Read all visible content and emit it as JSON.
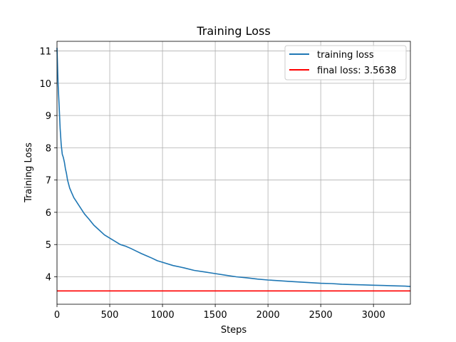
{
  "chart_data": {
    "type": "line",
    "title": "Training Loss",
    "xlabel": "Steps",
    "ylabel": "Training Loss",
    "xlim": [
      0,
      3350
    ],
    "ylim": [
      3.15,
      11.3
    ],
    "xticks": [
      0,
      500,
      1000,
      1500,
      2000,
      2500,
      3000
    ],
    "yticks": [
      4,
      5,
      6,
      7,
      8,
      9,
      10,
      11
    ],
    "grid": true,
    "legend": "top-right",
    "series": [
      {
        "name": "training loss",
        "color": "#1f77b4",
        "x": [
          0,
          10,
          20,
          30,
          40,
          50,
          60,
          70,
          80,
          90,
          100,
          120,
          140,
          160,
          180,
          200,
          230,
          260,
          300,
          350,
          400,
          450,
          500,
          550,
          600,
          650,
          700,
          750,
          800,
          850,
          900,
          950,
          1000,
          1100,
          1200,
          1300,
          1400,
          1500,
          1600,
          1700,
          1800,
          1900,
          2000,
          2100,
          2200,
          2300,
          2400,
          2500,
          2600,
          2700,
          2800,
          2900,
          3000,
          3100,
          3200,
          3300,
          3350
        ],
        "values": [
          11.1,
          10.0,
          9.3,
          8.6,
          8.1,
          7.8,
          7.7,
          7.55,
          7.35,
          7.2,
          7.0,
          6.75,
          6.6,
          6.45,
          6.35,
          6.25,
          6.1,
          5.95,
          5.8,
          5.6,
          5.45,
          5.3,
          5.2,
          5.1,
          5.0,
          4.95,
          4.88,
          4.8,
          4.72,
          4.65,
          4.58,
          4.5,
          4.45,
          4.35,
          4.28,
          4.2,
          4.15,
          4.1,
          4.05,
          4.0,
          3.97,
          3.93,
          3.9,
          3.88,
          3.86,
          3.84,
          3.82,
          3.8,
          3.79,
          3.77,
          3.76,
          3.75,
          3.74,
          3.73,
          3.72,
          3.71,
          3.7
        ]
      },
      {
        "name": "final loss: 3.5638",
        "color": "#ff0000",
        "x": [
          0,
          3350
        ],
        "values": [
          3.5638,
          3.5638
        ]
      }
    ]
  }
}
